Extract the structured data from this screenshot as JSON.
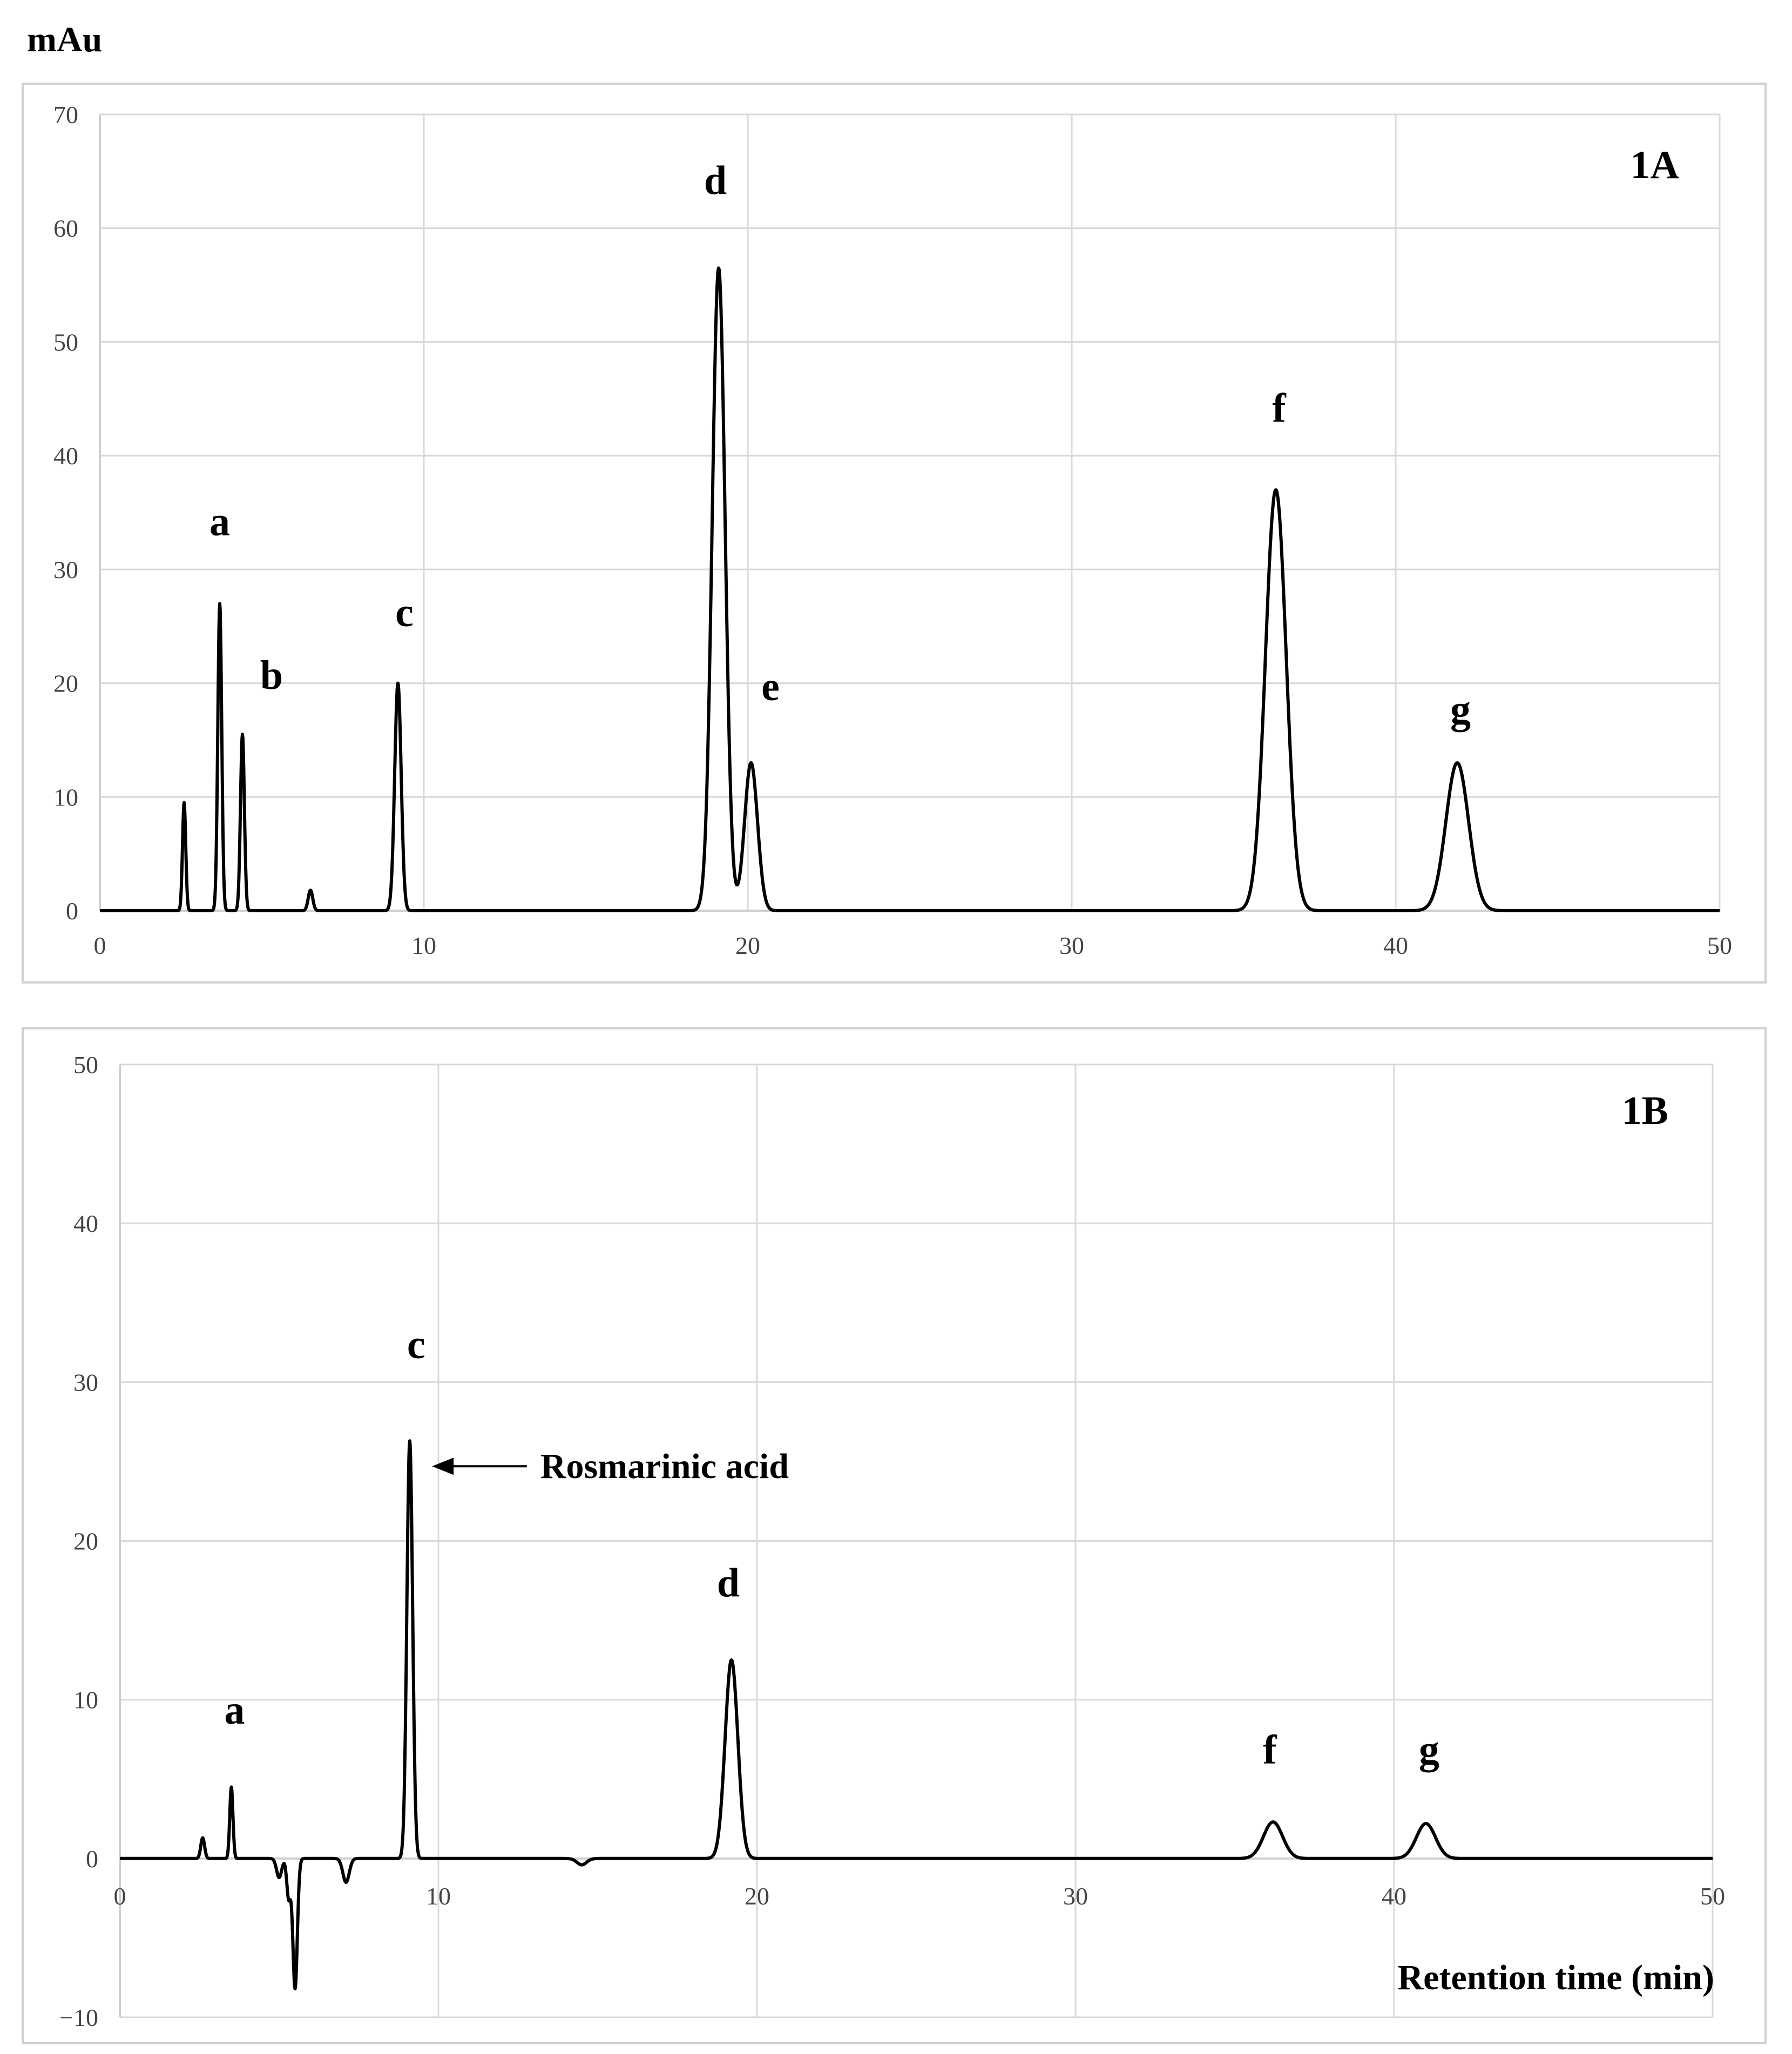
{
  "chart_data": [
    {
      "type": "line",
      "title": "1A",
      "ylabel": "mAu",
      "xlabel": "",
      "xlim": [
        0,
        50
      ],
      "ylim": [
        0,
        70
      ],
      "xticks": [
        0,
        10,
        20,
        30,
        40,
        50
      ],
      "yticks": [
        0,
        10,
        20,
        30,
        40,
        50,
        60,
        70
      ],
      "grid": true,
      "series": [
        {
          "name": "chromatogram",
          "peaks": [
            {
              "label": "",
              "rt": 2.6,
              "height": 9.5,
              "sigma": 0.05
            },
            {
              "label": "a",
              "rt": 3.7,
              "height": 27,
              "sigma": 0.06
            },
            {
              "label": "b",
              "rt": 4.4,
              "height": 15.5,
              "sigma": 0.06
            },
            {
              "label": "",
              "rt": 6.5,
              "height": 1.8,
              "sigma": 0.07
            },
            {
              "label": "c",
              "rt": 9.2,
              "height": 20,
              "sigma": 0.1
            },
            {
              "label": "d",
              "rt": 19.1,
              "height": 56.5,
              "sigma": 0.2
            },
            {
              "label": "e",
              "rt": 20.1,
              "height": 13,
              "sigma": 0.2
            },
            {
              "label": "f",
              "rt": 36.3,
              "height": 37,
              "sigma": 0.32
            },
            {
              "label": "g",
              "rt": 41.9,
              "height": 13,
              "sigma": 0.35
            }
          ]
        }
      ],
      "annotations": [
        {
          "text": "a",
          "x": 3.7,
          "y": 33
        },
        {
          "text": "b",
          "x": 5.3,
          "y": 19.5
        },
        {
          "text": "c",
          "x": 9.4,
          "y": 25
        },
        {
          "text": "d",
          "x": 19.0,
          "y": 63
        },
        {
          "text": "e",
          "x": 20.7,
          "y": 18.5
        },
        {
          "text": "f",
          "x": 36.4,
          "y": 43
        },
        {
          "text": "g",
          "x": 42.0,
          "y": 16.5
        }
      ]
    },
    {
      "type": "line",
      "title": "1B",
      "ylabel": "",
      "xlabel": "Retention time (min)",
      "xlim": [
        0,
        50
      ],
      "ylim": [
        -10,
        50
      ],
      "xticks": [
        0,
        10,
        20,
        30,
        40,
        50
      ],
      "yticks": [
        -10,
        0,
        10,
        20,
        30,
        40,
        50
      ],
      "grid": true,
      "series": [
        {
          "name": "chromatogram",
          "peaks": [
            {
              "label": "",
              "rt": 2.6,
              "height": 1.3,
              "sigma": 0.06
            },
            {
              "label": "a",
              "rt": 3.5,
              "height": 4.5,
              "sigma": 0.05
            },
            {
              "label": "",
              "rt": 5.0,
              "height": -1.2,
              "sigma": 0.08
            },
            {
              "label": "",
              "rt": 5.3,
              "height": -2.5,
              "sigma": 0.06
            },
            {
              "label": "",
              "rt": 5.5,
              "height": -8.2,
              "sigma": 0.07
            },
            {
              "label": "",
              "rt": 7.1,
              "height": -1.5,
              "sigma": 0.1
            },
            {
              "label": "c",
              "rt": 9.1,
              "height": 26.3,
              "sigma": 0.09
            },
            {
              "label": "",
              "rt": 14.5,
              "height": -0.4,
              "sigma": 0.15
            },
            {
              "label": "d",
              "rt": 19.2,
              "height": 12.5,
              "sigma": 0.2
            },
            {
              "label": "f",
              "rt": 36.2,
              "height": 2.3,
              "sigma": 0.3
            },
            {
              "label": "g",
              "rt": 41.0,
              "height": 2.2,
              "sigma": 0.3
            }
          ]
        }
      ],
      "annotations": [
        {
          "text": "a",
          "x": 3.6,
          "y": 8.5
        },
        {
          "text": "c",
          "x": 9.3,
          "y": 31.5
        },
        {
          "text": "d",
          "x": 19.1,
          "y": 16.5
        },
        {
          "text": "f",
          "x": 36.1,
          "y": 6
        },
        {
          "text": "g",
          "x": 41.1,
          "y": 6
        }
      ],
      "callout": {
        "text": "Rosmarinic acid",
        "x": 9.8,
        "y": 24.7,
        "text_x": 13.2
      }
    }
  ]
}
